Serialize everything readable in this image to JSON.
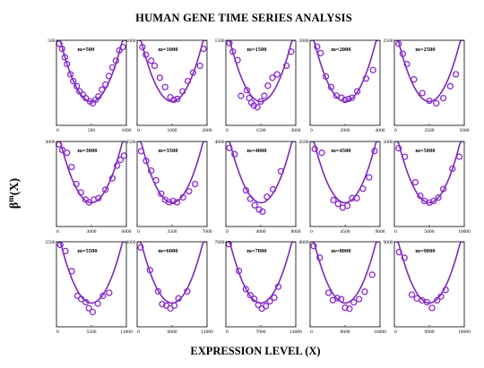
{
  "chart_data": {
    "type": "scatter",
    "title": "HUMAN GENE TIME SERIES ANALYSIS",
    "xlabel": "EXPRESSION LEVEL (X)",
    "ylabel": "β",
    "ylabel_sup": "m",
    "ylabel_tail": "(X)",
    "colors": {
      "points": "#8a2bd0",
      "curve": "#7a2ab8"
    },
    "grid": false,
    "panels": [
      {
        "label": "m=500",
        "xlim": [
          0,
          1000
        ],
        "ytop": "500",
        "xticks": [
          "0",
          "500",
          "1000"
        ],
        "points": [
          [
            40,
            480
          ],
          [
            80,
            450
          ],
          [
            120,
            400
          ],
          [
            150,
            360
          ],
          [
            200,
            300
          ],
          [
            240,
            260
          ],
          [
            290,
            230
          ],
          [
            330,
            200
          ],
          [
            380,
            180
          ],
          [
            420,
            160
          ],
          [
            480,
            140
          ],
          [
            520,
            130
          ],
          [
            560,
            150
          ],
          [
            600,
            170
          ],
          [
            650,
            210
          ],
          [
            700,
            240
          ],
          [
            750,
            290
          ],
          [
            800,
            340
          ],
          [
            850,
            380
          ],
          [
            900,
            440
          ],
          [
            950,
            460
          ]
        ]
      },
      {
        "label": "m=1000",
        "xlim": [
          0,
          2000
        ],
        "ytop": "1000",
        "xticks": [
          "0",
          "1000",
          "2000"
        ],
        "points": [
          [
            150,
            920
          ],
          [
            250,
            830
          ],
          [
            400,
            760
          ],
          [
            500,
            700
          ],
          [
            650,
            560
          ],
          [
            800,
            450
          ],
          [
            950,
            330
          ],
          [
            1050,
            300
          ],
          [
            1150,
            310
          ],
          [
            1300,
            400
          ],
          [
            1450,
            520
          ],
          [
            1600,
            620
          ],
          [
            1800,
            700
          ],
          [
            1900,
            900
          ]
        ]
      },
      {
        "label": "m=1500",
        "xlim": [
          0,
          3000
        ],
        "ytop": "1500",
        "xticks": [
          "0",
          "1500",
          "3000"
        ],
        "points": [
          [
            150,
            1450
          ],
          [
            300,
            1300
          ],
          [
            500,
            1150
          ],
          [
            650,
            520
          ],
          [
            900,
            620
          ],
          [
            1000,
            480
          ],
          [
            1100,
            400
          ],
          [
            1200,
            350
          ],
          [
            1350,
            320
          ],
          [
            1500,
            420
          ],
          [
            1650,
            520
          ],
          [
            1800,
            700
          ],
          [
            2000,
            840
          ],
          [
            2200,
            900
          ],
          [
            2600,
            1050
          ],
          [
            2800,
            1300
          ]
        ]
      },
      {
        "label": "m=2000",
        "xlim": [
          0,
          4000
        ],
        "ytop": "2000",
        "xticks": [
          "0",
          "2000",
          "4000"
        ],
        "points": [
          [
            400,
            1850
          ],
          [
            600,
            1700
          ],
          [
            900,
            1150
          ],
          [
            1200,
            900
          ],
          [
            1500,
            700
          ],
          [
            1800,
            650
          ],
          [
            2000,
            600
          ],
          [
            2200,
            620
          ],
          [
            2400,
            650
          ],
          [
            2700,
            800
          ],
          [
            3200,
            1100
          ],
          [
            3600,
            1300
          ]
        ]
      },
      {
        "label": "m=2500",
        "xlim": [
          0,
          5000
        ],
        "ytop": "2500",
        "xticks": [
          "0",
          "2500",
          "5000"
        ],
        "points": [
          [
            300,
            2400
          ],
          [
            600,
            2100
          ],
          [
            900,
            1800
          ],
          [
            1400,
            1350
          ],
          [
            2000,
            950
          ],
          [
            2500,
            720
          ],
          [
            3000,
            650
          ],
          [
            3500,
            800
          ],
          [
            4000,
            1150
          ],
          [
            4400,
            1500
          ]
        ]
      },
      {
        "label": "m=3000",
        "xlim": [
          0,
          6000
        ],
        "ytop": "3000",
        "xticks": [
          "0",
          "3000",
          "6000"
        ],
        "points": [
          [
            200,
            2900
          ],
          [
            500,
            2700
          ],
          [
            900,
            2600
          ],
          [
            1300,
            2100
          ],
          [
            1700,
            1500
          ],
          [
            2100,
            1200
          ],
          [
            2500,
            950
          ],
          [
            2800,
            850
          ],
          [
            3200,
            950
          ],
          [
            3600,
            1000
          ],
          [
            4200,
            1300
          ],
          [
            4800,
            1700
          ],
          [
            5200,
            2150
          ],
          [
            5500,
            2350
          ],
          [
            5800,
            2500
          ]
        ]
      },
      {
        "label": "m=3500",
        "xlim": [
          0,
          7000
        ],
        "ytop": "3500",
        "xticks": [
          "0",
          "3500",
          "7000"
        ],
        "points": [
          [
            400,
            3100
          ],
          [
            900,
            2700
          ],
          [
            1400,
            2300
          ],
          [
            1900,
            1900
          ],
          [
            2400,
            1350
          ],
          [
            2800,
            1100
          ],
          [
            3200,
            1000
          ],
          [
            3600,
            1050
          ],
          [
            4000,
            1000
          ],
          [
            4600,
            1200
          ],
          [
            5200,
            1450
          ],
          [
            5800,
            1750
          ]
        ]
      },
      {
        "label": "m=4000",
        "xlim": [
          0,
          8000
        ],
        "ytop": "4000",
        "xticks": [
          "0",
          "4000",
          "8000"
        ],
        "points": [
          [
            400,
            3700
          ],
          [
            1000,
            3400
          ],
          [
            2300,
            1700
          ],
          [
            2800,
            1300
          ],
          [
            3300,
            1000
          ],
          [
            3800,
            800
          ],
          [
            4200,
            700
          ],
          [
            4700,
            1400
          ],
          [
            5400,
            1750
          ],
          [
            6300,
            2600
          ]
        ]
      },
      {
        "label": "m=4500",
        "xlim": [
          0,
          9000
        ],
        "ytop": "4500",
        "xticks": [
          "0",
          "4500",
          "9000"
        ],
        "points": [
          [
            600,
            4100
          ],
          [
            1500,
            3900
          ],
          [
            3000,
            1400
          ],
          [
            3600,
            1200
          ],
          [
            4200,
            1000
          ],
          [
            4800,
            1100
          ],
          [
            5400,
            1500
          ],
          [
            6000,
            1500
          ],
          [
            6800,
            2000
          ],
          [
            7600,
            2600
          ],
          [
            8300,
            4000
          ]
        ]
      },
      {
        "label": "m=5000",
        "xlim": [
          0,
          10000
        ],
        "ytop": "5000",
        "xticks": [
          "0",
          "5000",
          "10000"
        ],
        "points": [
          [
            600,
            4600
          ],
          [
            1500,
            4100
          ],
          [
            3000,
            2600
          ],
          [
            3700,
            1800
          ],
          [
            4300,
            1500
          ],
          [
            5000,
            1400
          ],
          [
            5600,
            1500
          ],
          [
            6300,
            1700
          ],
          [
            7000,
            2200
          ],
          [
            8300,
            3400
          ],
          [
            9300,
            4100
          ]
        ]
      },
      {
        "label": "m=5500",
        "xlim": [
          0,
          11000
        ],
        "ytop": "5500",
        "xticks": [
          "0",
          "5500",
          "11000"
        ],
        "points": [
          [
            600,
            5300
          ],
          [
            1400,
            4900
          ],
          [
            2400,
            3600
          ],
          [
            3300,
            2000
          ],
          [
            3900,
            1800
          ],
          [
            4600,
            1600
          ],
          [
            5100,
            1200
          ],
          [
            5700,
            950
          ],
          [
            6500,
            1500
          ],
          [
            7300,
            2000
          ],
          [
            8300,
            2200
          ]
        ]
      },
      {
        "label": "m=6000",
        "xlim": [
          0,
          12000
        ],
        "ytop": "6000",
        "xticks": [
          "0",
          "6000",
          "12000"
        ],
        "points": [
          [
            600,
            5600
          ],
          [
            2200,
            4000
          ],
          [
            3600,
            2500
          ],
          [
            4300,
            1600
          ],
          [
            5000,
            1500
          ],
          [
            5700,
            1300
          ],
          [
            6400,
            1500
          ],
          [
            7100,
            2000
          ],
          [
            8600,
            2500
          ]
        ]
      },
      {
        "label": "m=7000",
        "xlim": [
          0,
          14000
        ],
        "ytop": "7000",
        "xticks": [
          "0",
          "7000",
          "14000"
        ],
        "points": [
          [
            600,
            6800
          ],
          [
            2600,
            4600
          ],
          [
            4000,
            3100
          ],
          [
            4900,
            2600
          ],
          [
            5700,
            2300
          ],
          [
            6500,
            1800
          ],
          [
            7200,
            1500
          ],
          [
            8000,
            1700
          ],
          [
            8800,
            2100
          ],
          [
            9700,
            2400
          ],
          [
            10500,
            3300
          ]
        ]
      },
      {
        "label": "m=8000",
        "xlim": [
          0,
          16000
        ],
        "ytop": "8000",
        "xticks": [
          "0",
          "8000",
          "16000"
        ],
        "points": [
          [
            800,
            7600
          ],
          [
            2200,
            6500
          ],
          [
            4200,
            3200
          ],
          [
            5200,
            2500
          ],
          [
            6200,
            2700
          ],
          [
            7100,
            2600
          ],
          [
            8000,
            1800
          ],
          [
            9000,
            1700
          ],
          [
            10000,
            2300
          ],
          [
            11200,
            2600
          ],
          [
            12500,
            3300
          ],
          [
            14200,
            4900
          ]
        ]
      },
      {
        "label": "m=9000",
        "xlim": [
          0,
          18000
        ],
        "ytop": "9000",
        "xticks": [
          "0",
          "9000",
          "18000"
        ],
        "points": [
          [
            1200,
            7900
          ],
          [
            2600,
            7300
          ],
          [
            4500,
            3400
          ],
          [
            5800,
            3000
          ],
          [
            7100,
            2800
          ],
          [
            8400,
            2600
          ],
          [
            9700,
            2000
          ],
          [
            11000,
            2800
          ],
          [
            12000,
            3200
          ],
          [
            13200,
            3900
          ]
        ]
      }
    ]
  }
}
